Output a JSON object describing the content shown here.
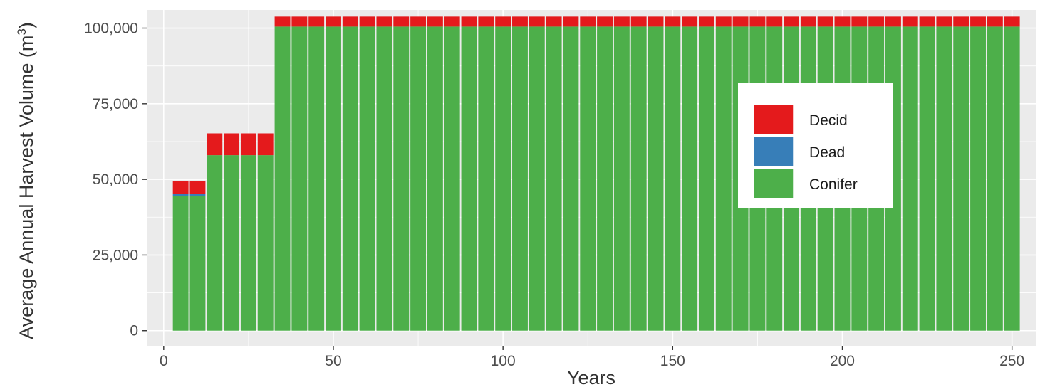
{
  "chart_data": {
    "type": "bar",
    "stacked": true,
    "xlabel": "Years",
    "ylabel": "Average Annual Harvest Volume (m",
    "ylabel_superscript": "3",
    "ylabel_suffix": ")",
    "xlim": [
      -5,
      257
    ],
    "ylim": [
      -5000,
      106000
    ],
    "x_ticks": [
      0,
      50,
      100,
      150,
      200,
      250
    ],
    "x_tick_labels": [
      "0",
      "50",
      "100",
      "150",
      "200",
      "250"
    ],
    "y_ticks": [
      0,
      25000,
      50000,
      75000,
      100000
    ],
    "y_tick_labels": [
      "0",
      "25,000",
      "50,000",
      "75,000",
      "100,000"
    ],
    "grid": true,
    "legend_position": "right",
    "bar_width": 4.6,
    "x": [
      5,
      10,
      15,
      20,
      25,
      30,
      35,
      40,
      45,
      50,
      55,
      60,
      65,
      70,
      75,
      80,
      85,
      90,
      95,
      100,
      105,
      110,
      115,
      120,
      125,
      130,
      135,
      140,
      145,
      150,
      155,
      160,
      165,
      170,
      175,
      180,
      185,
      190,
      195,
      200,
      205,
      210,
      215,
      220,
      225,
      230,
      235,
      240,
      245,
      250
    ],
    "series": [
      {
        "name": "Conifer",
        "color": "#4daf4a",
        "values": [
          44500,
          44500,
          58000,
          58000,
          58000,
          58000,
          100500,
          100500,
          100500,
          100500,
          100500,
          100500,
          100500,
          100500,
          100500,
          100500,
          100500,
          100500,
          100500,
          100500,
          100500,
          100500,
          100500,
          100500,
          100500,
          100500,
          100500,
          100500,
          100500,
          100500,
          100500,
          100500,
          100500,
          100500,
          100500,
          100500,
          100500,
          100500,
          100500,
          100500,
          100500,
          100500,
          100500,
          100500,
          100500,
          100500,
          100500,
          100500,
          100500,
          100500
        ]
      },
      {
        "name": "Dead",
        "color": "#377eb8",
        "values": [
          800,
          800,
          0,
          0,
          0,
          0,
          0,
          0,
          0,
          0,
          0,
          0,
          0,
          0,
          0,
          0,
          0,
          0,
          0,
          0,
          0,
          0,
          0,
          0,
          0,
          0,
          0,
          0,
          0,
          0,
          0,
          0,
          0,
          0,
          0,
          0,
          0,
          0,
          0,
          0,
          0,
          0,
          0,
          0,
          0,
          0,
          0,
          0,
          0,
          0
        ]
      },
      {
        "name": "Decid",
        "color": "#e41a1c",
        "values": [
          4200,
          4200,
          7200,
          7200,
          7200,
          7200,
          3300,
          3300,
          3300,
          3300,
          3300,
          3300,
          3300,
          3300,
          3300,
          3300,
          3300,
          3300,
          3300,
          3300,
          3300,
          3300,
          3300,
          3300,
          3300,
          3300,
          3300,
          3300,
          3300,
          3300,
          3300,
          3300,
          3300,
          3300,
          3300,
          3300,
          3300,
          3300,
          3300,
          3300,
          3300,
          3300,
          3300,
          3300,
          3300,
          3300,
          3300,
          3300,
          3300,
          3300
        ]
      }
    ],
    "legend": [
      {
        "name": "Decid",
        "color": "#e41a1c"
      },
      {
        "name": "Dead",
        "color": "#377eb8"
      },
      {
        "name": "Conifer",
        "color": "#4daf4a"
      }
    ],
    "panel_background": "#ebebeb",
    "gridline_color": "#ffffff"
  }
}
